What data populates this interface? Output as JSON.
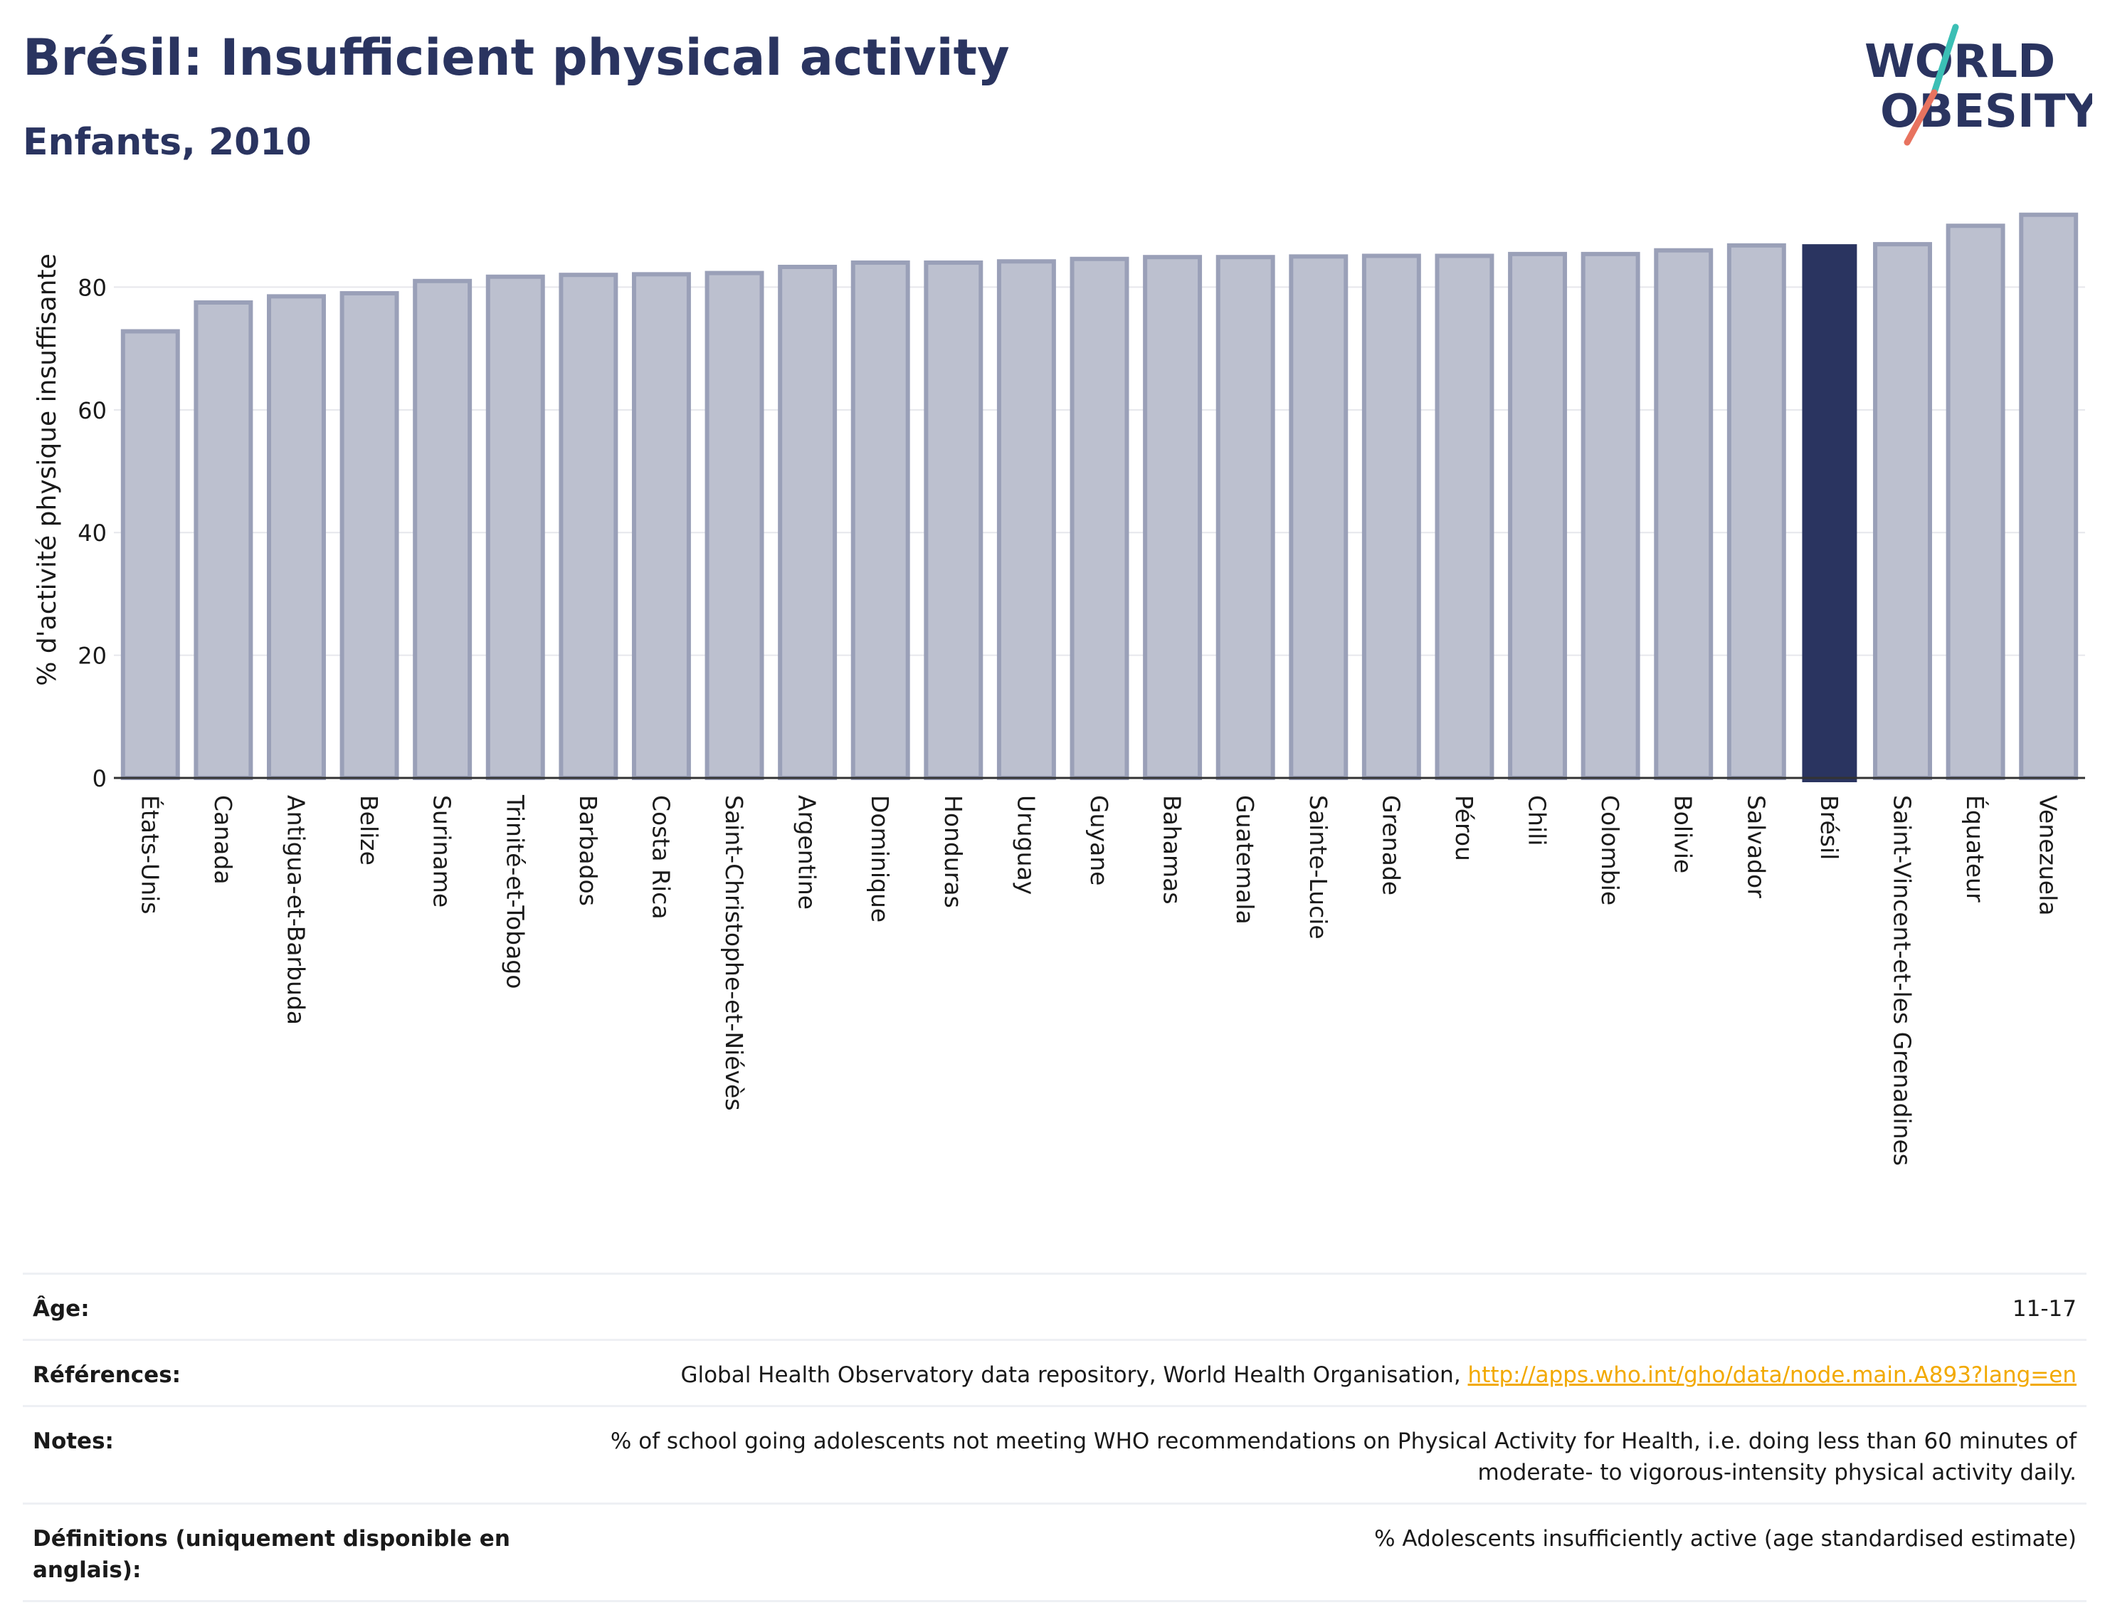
{
  "header": {
    "title": "Brésil: Insufficient physical activity",
    "subtitle": "Enfants, 2010"
  },
  "logo": {
    "line1": "WORLD",
    "line2": "OBESITY",
    "accent_teal": "#3bbfb5",
    "accent_coral": "#e8735f"
  },
  "colors": {
    "bar": "#bcc0cf",
    "bar_border": "#9aa0b8",
    "highlight": "#2a3460",
    "grid": "#e6e7ec",
    "axis": "#333333"
  },
  "chart_data": {
    "type": "bar",
    "ylabel": "% d'activité physique insuffisante",
    "ylim": [
      0,
      92
    ],
    "yticks": [
      0,
      20,
      40,
      60,
      80
    ],
    "highlight": "Brésil",
    "categories": [
      "États-Unis",
      "Canada",
      "Antigua-et-Barbuda",
      "Belize",
      "Suriname",
      "Trinité-et-Tobago",
      "Barbados",
      "Costa Rica",
      "Saint-Christophe-et-Niévès",
      "Argentine",
      "Dominique",
      "Honduras",
      "Uruguay",
      "Guyane",
      "Bahamas",
      "Guatemala",
      "Sainte-Lucie",
      "Grenade",
      "Pérou",
      "Chili",
      "Colombie",
      "Bolivie",
      "Salvador",
      "Brésil",
      "Saint-Vincent-et-les Grenadines",
      "Équateur",
      "Venezuela"
    ],
    "values": [
      72.8,
      77.5,
      78.5,
      79.0,
      81.0,
      81.7,
      82.0,
      82.1,
      82.3,
      83.3,
      84.0,
      84.0,
      84.2,
      84.6,
      84.9,
      84.9,
      85.0,
      85.1,
      85.1,
      85.4,
      85.4,
      86.0,
      86.8,
      87.0,
      87.0,
      90.0,
      91.8
    ]
  },
  "meta": {
    "age": {
      "label": "Âge:",
      "value": "11-17"
    },
    "references": {
      "label": "Références:",
      "text": "Global Health Observatory data repository, World Health Organisation, ",
      "link": "http://apps.who.int/gho/data/node.main.A893?lang=en"
    },
    "notes": {
      "label": "Notes:",
      "line1": "% of school going adolescents not meeting WHO recommendations on Physical Activity for Health, i.e. doing less than 60 minutes of",
      "line2": "moderate- to vigorous-intensity physical activity daily."
    },
    "definitions": {
      "label_line1": "Définitions (uniquement disponible en",
      "label_line2": "anglais):",
      "value": "% Adolescents insufficiently active (age standardised estimate)"
    }
  }
}
